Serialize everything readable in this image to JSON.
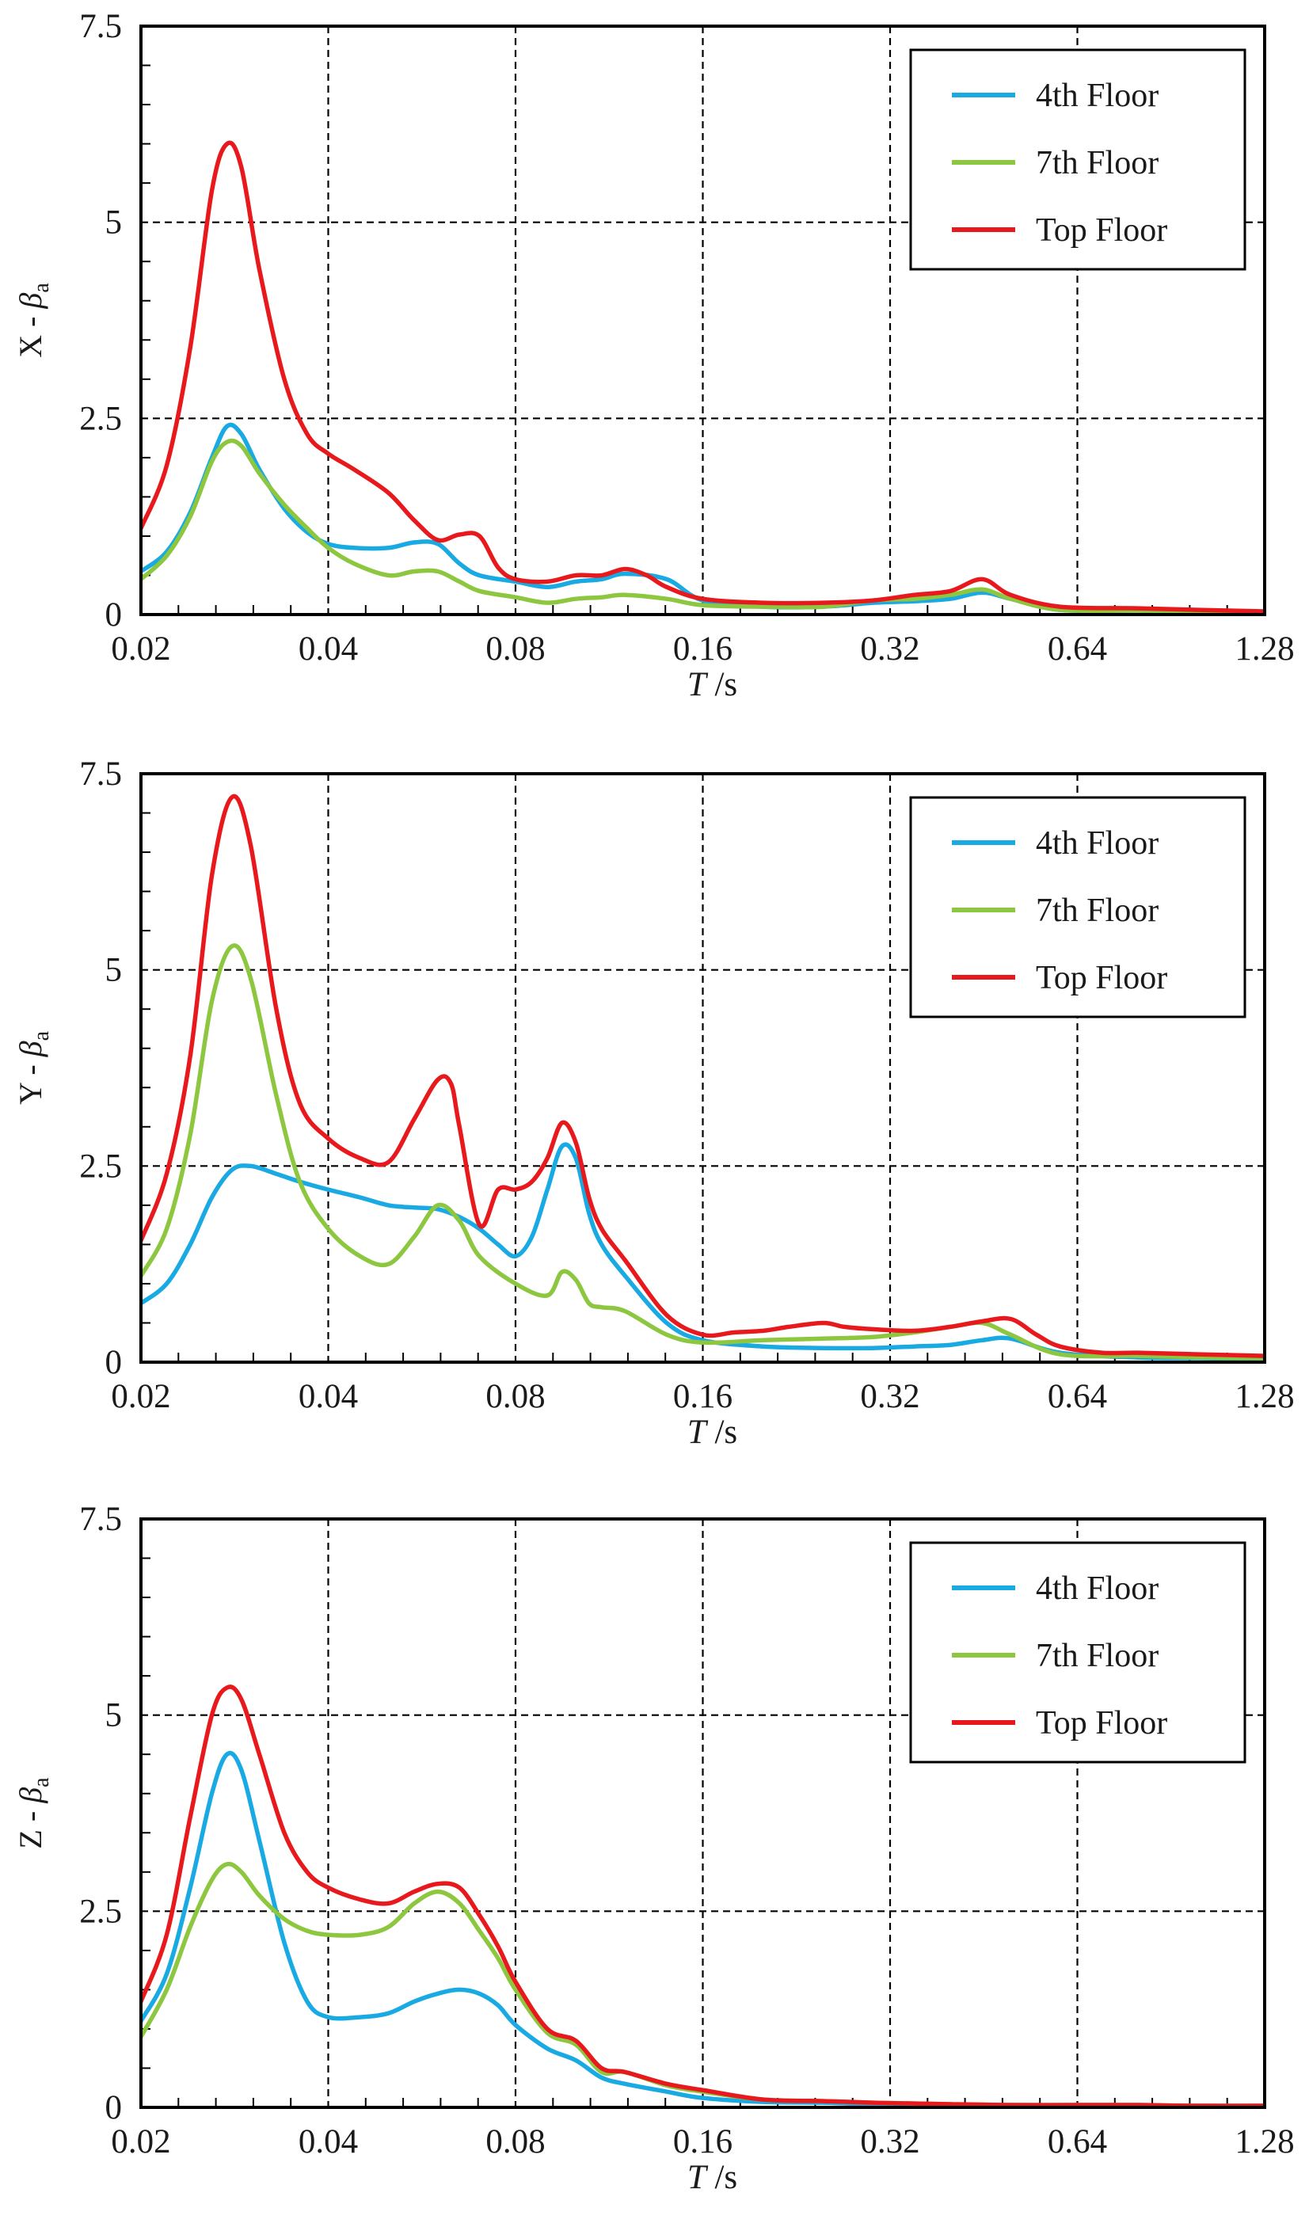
{
  "chart_data": [
    {
      "type": "line",
      "panel": "top",
      "title": "",
      "xlabel": "T /s",
      "ylabel": "X - βa",
      "ylabel_parts": {
        "lead": "X - ",
        "symbol": "β",
        "sub": "a"
      },
      "xscale": "log2",
      "xlim": [
        0.02,
        1.28
      ],
      "ylim": [
        0,
        7.5
      ],
      "xticks": [
        0.02,
        0.04,
        0.08,
        0.16,
        0.32,
        0.64,
        1.28
      ],
      "xtick_labels": [
        "0.02",
        "0.04",
        "0.08",
        "0.16",
        "0.32",
        "0.64",
        "1.28"
      ],
      "yticks": [
        0,
        2.5,
        5,
        7.5
      ],
      "ytick_labels": [
        "0",
        "2.5",
        "5",
        "7.5"
      ],
      "grid": "dashed, major ticks",
      "legend_position": "top-right",
      "series": [
        {
          "name": "4th Floor",
          "color": "#19a9e3",
          "x": [
            0.02,
            0.022,
            0.024,
            0.026,
            0.0275,
            0.029,
            0.031,
            0.034,
            0.037,
            0.04,
            0.044,
            0.05,
            0.055,
            0.06,
            0.065,
            0.07,
            0.08,
            0.09,
            0.1,
            0.11,
            0.12,
            0.14,
            0.16,
            0.2,
            0.25,
            0.3,
            0.35,
            0.4,
            0.45,
            0.5,
            0.6,
            0.8,
            1.0,
            1.28
          ],
          "y": [
            0.55,
            0.8,
            1.3,
            2.0,
            2.4,
            2.3,
            1.85,
            1.35,
            1.05,
            0.9,
            0.85,
            0.85,
            0.92,
            0.9,
            0.65,
            0.5,
            0.42,
            0.35,
            0.42,
            0.45,
            0.52,
            0.45,
            0.18,
            0.1,
            0.1,
            0.15,
            0.17,
            0.2,
            0.28,
            0.2,
            0.06,
            0.05,
            0.04,
            0.03
          ]
        },
        {
          "name": "7th Floor",
          "color": "#8dc63f",
          "x": [
            0.02,
            0.022,
            0.024,
            0.026,
            0.0275,
            0.029,
            0.031,
            0.034,
            0.037,
            0.04,
            0.044,
            0.05,
            0.055,
            0.06,
            0.065,
            0.07,
            0.08,
            0.09,
            0.1,
            0.11,
            0.12,
            0.14,
            0.16,
            0.2,
            0.25,
            0.3,
            0.35,
            0.4,
            0.45,
            0.5,
            0.6,
            0.8,
            1.0,
            1.28
          ],
          "y": [
            0.45,
            0.75,
            1.25,
            1.95,
            2.2,
            2.15,
            1.8,
            1.4,
            1.1,
            0.85,
            0.65,
            0.5,
            0.55,
            0.55,
            0.42,
            0.3,
            0.22,
            0.15,
            0.2,
            0.22,
            0.25,
            0.2,
            0.12,
            0.1,
            0.1,
            0.18,
            0.2,
            0.25,
            0.32,
            0.2,
            0.06,
            0.05,
            0.04,
            0.03
          ]
        },
        {
          "name": "Top Floor",
          "color": "#e8191c",
          "x": [
            0.02,
            0.022,
            0.024,
            0.026,
            0.0275,
            0.029,
            0.031,
            0.034,
            0.037,
            0.04,
            0.044,
            0.05,
            0.055,
            0.06,
            0.065,
            0.07,
            0.075,
            0.08,
            0.09,
            0.1,
            0.11,
            0.12,
            0.13,
            0.14,
            0.16,
            0.2,
            0.25,
            0.3,
            0.35,
            0.4,
            0.45,
            0.5,
            0.6,
            0.8,
            1.0,
            1.28
          ],
          "y": [
            1.1,
            1.9,
            3.4,
            5.4,
            6.0,
            5.7,
            4.4,
            3.0,
            2.3,
            2.05,
            1.85,
            1.55,
            1.2,
            0.95,
            1.02,
            1.0,
            0.6,
            0.45,
            0.42,
            0.5,
            0.5,
            0.58,
            0.5,
            0.35,
            0.2,
            0.15,
            0.15,
            0.18,
            0.25,
            0.3,
            0.45,
            0.25,
            0.1,
            0.08,
            0.06,
            0.04
          ]
        }
      ]
    },
    {
      "type": "line",
      "panel": "middle",
      "title": "",
      "xlabel": "T /s",
      "ylabel": "Y - βa",
      "ylabel_parts": {
        "lead": "Y - ",
        "symbol": "β",
        "sub": "a"
      },
      "xscale": "log2",
      "xlim": [
        0.02,
        1.28
      ],
      "ylim": [
        0,
        7.5
      ],
      "xticks": [
        0.02,
        0.04,
        0.08,
        0.16,
        0.32,
        0.64,
        1.28
      ],
      "xtick_labels": [
        "0.02",
        "0.04",
        "0.08",
        "0.16",
        "0.32",
        "0.64",
        "1.28"
      ],
      "yticks": [
        0,
        2.5,
        5,
        7.5
      ],
      "ytick_labels": [
        "0",
        "2.5",
        "5",
        "7.5"
      ],
      "grid": "dashed, major ticks",
      "legend_position": "top-right",
      "series": [
        {
          "name": "4th Floor",
          "color": "#19a9e3",
          "x": [
            0.02,
            0.022,
            0.024,
            0.026,
            0.028,
            0.03,
            0.033,
            0.036,
            0.04,
            0.045,
            0.05,
            0.055,
            0.06,
            0.065,
            0.07,
            0.075,
            0.08,
            0.085,
            0.09,
            0.095,
            0.1,
            0.105,
            0.11,
            0.12,
            0.14,
            0.16,
            0.2,
            0.25,
            0.3,
            0.35,
            0.4,
            0.45,
            0.5,
            0.6,
            0.8,
            1.0,
            1.28
          ],
          "y": [
            0.75,
            1.0,
            1.5,
            2.1,
            2.45,
            2.5,
            2.4,
            2.3,
            2.2,
            2.1,
            2.0,
            1.97,
            1.95,
            1.85,
            1.7,
            1.5,
            1.35,
            1.6,
            2.2,
            2.75,
            2.6,
            1.9,
            1.5,
            1.1,
            0.5,
            0.28,
            0.2,
            0.18,
            0.18,
            0.2,
            0.22,
            0.28,
            0.3,
            0.12,
            0.06,
            0.05,
            0.04
          ]
        },
        {
          "name": "7th Floor",
          "color": "#8dc63f",
          "x": [
            0.02,
            0.022,
            0.024,
            0.026,
            0.028,
            0.03,
            0.033,
            0.036,
            0.04,
            0.045,
            0.05,
            0.055,
            0.06,
            0.065,
            0.07,
            0.08,
            0.09,
            0.095,
            0.1,
            0.105,
            0.11,
            0.12,
            0.14,
            0.16,
            0.2,
            0.25,
            0.3,
            0.35,
            0.4,
            0.45,
            0.5,
            0.6,
            0.8,
            1.0,
            1.28
          ],
          "y": [
            1.1,
            1.7,
            2.9,
            4.6,
            5.3,
            4.9,
            3.4,
            2.3,
            1.7,
            1.35,
            1.25,
            1.6,
            2.0,
            1.8,
            1.35,
            1.0,
            0.85,
            1.15,
            1.05,
            0.75,
            0.7,
            0.65,
            0.35,
            0.25,
            0.28,
            0.3,
            0.32,
            0.38,
            0.45,
            0.5,
            0.35,
            0.1,
            0.08,
            0.06,
            0.05
          ]
        },
        {
          "name": "Top Floor",
          "color": "#e8191c",
          "x": [
            0.02,
            0.022,
            0.024,
            0.026,
            0.028,
            0.03,
            0.033,
            0.036,
            0.04,
            0.045,
            0.05,
            0.055,
            0.06,
            0.063,
            0.065,
            0.07,
            0.075,
            0.08,
            0.085,
            0.09,
            0.095,
            0.1,
            0.105,
            0.11,
            0.12,
            0.14,
            0.16,
            0.18,
            0.2,
            0.22,
            0.25,
            0.27,
            0.3,
            0.35,
            0.4,
            0.45,
            0.5,
            0.55,
            0.6,
            0.7,
            0.8,
            1.0,
            1.28
          ],
          "y": [
            1.55,
            2.4,
            3.9,
            6.2,
            7.2,
            6.6,
            4.5,
            3.3,
            2.85,
            2.6,
            2.55,
            3.1,
            3.6,
            3.55,
            3.0,
            1.75,
            2.2,
            2.2,
            2.3,
            2.6,
            3.05,
            2.8,
            2.1,
            1.7,
            1.3,
            0.6,
            0.35,
            0.38,
            0.4,
            0.45,
            0.5,
            0.45,
            0.42,
            0.4,
            0.45,
            0.52,
            0.55,
            0.35,
            0.2,
            0.12,
            0.12,
            0.1,
            0.08
          ]
        }
      ]
    },
    {
      "type": "line",
      "panel": "bottom",
      "title": "",
      "xlabel": "T /s",
      "ylabel": "Z - βa",
      "ylabel_parts": {
        "lead": "Z - ",
        "symbol": "β",
        "sub": "a"
      },
      "xscale": "log2",
      "xlim": [
        0.02,
        1.28
      ],
      "ylim": [
        0,
        7.5
      ],
      "xticks": [
        0.02,
        0.04,
        0.08,
        0.16,
        0.32,
        0.64,
        1.28
      ],
      "xtick_labels": [
        "0.02",
        "0.04",
        "0.08",
        "0.16",
        "0.32",
        "0.64",
        "1.28"
      ],
      "yticks": [
        0,
        2.5,
        5,
        7.5
      ],
      "ytick_labels": [
        "0",
        "2.5",
        "5",
        "7.5"
      ],
      "grid": "dashed, major ticks",
      "legend_position": "top-right",
      "series": [
        {
          "name": "4th Floor",
          "color": "#19a9e3",
          "x": [
            0.02,
            0.022,
            0.024,
            0.026,
            0.0275,
            0.029,
            0.031,
            0.034,
            0.037,
            0.04,
            0.045,
            0.05,
            0.055,
            0.06,
            0.065,
            0.07,
            0.075,
            0.08,
            0.09,
            0.1,
            0.11,
            0.12,
            0.14,
            0.16,
            0.2,
            0.25,
            0.3,
            0.4,
            0.5,
            0.64,
            0.8,
            1.0,
            1.28
          ],
          "y": [
            1.1,
            1.7,
            2.8,
            4.0,
            4.5,
            4.3,
            3.4,
            2.1,
            1.35,
            1.15,
            1.15,
            1.2,
            1.35,
            1.45,
            1.5,
            1.45,
            1.3,
            1.05,
            0.75,
            0.6,
            0.38,
            0.3,
            0.2,
            0.12,
            0.07,
            0.06,
            0.04,
            0.03,
            0.02,
            0.02,
            0.02,
            0.02,
            0.02
          ]
        },
        {
          "name": "7th Floor",
          "color": "#8dc63f",
          "x": [
            0.02,
            0.022,
            0.024,
            0.026,
            0.0275,
            0.029,
            0.031,
            0.034,
            0.037,
            0.04,
            0.045,
            0.05,
            0.055,
            0.06,
            0.065,
            0.07,
            0.075,
            0.08,
            0.09,
            0.1,
            0.11,
            0.12,
            0.14,
            0.16,
            0.2,
            0.25,
            0.3,
            0.4,
            0.5,
            0.64,
            0.8,
            1.0,
            1.28
          ],
          "y": [
            0.9,
            1.5,
            2.3,
            2.9,
            3.1,
            3.0,
            2.7,
            2.4,
            2.25,
            2.2,
            2.2,
            2.3,
            2.6,
            2.75,
            2.6,
            2.25,
            1.9,
            1.5,
            0.95,
            0.8,
            0.45,
            0.45,
            0.28,
            0.2,
            0.1,
            0.08,
            0.06,
            0.04,
            0.03,
            0.03,
            0.03,
            0.02,
            0.02
          ]
        },
        {
          "name": "Top Floor",
          "color": "#e8191c",
          "x": [
            0.02,
            0.022,
            0.024,
            0.026,
            0.0275,
            0.029,
            0.031,
            0.034,
            0.037,
            0.04,
            0.045,
            0.05,
            0.055,
            0.06,
            0.065,
            0.07,
            0.075,
            0.08,
            0.09,
            0.1,
            0.11,
            0.12,
            0.14,
            0.16,
            0.2,
            0.25,
            0.3,
            0.4,
            0.5,
            0.64,
            0.8,
            1.0,
            1.28
          ],
          "y": [
            1.35,
            2.2,
            3.7,
            5.0,
            5.35,
            5.2,
            4.5,
            3.5,
            3.0,
            2.8,
            2.65,
            2.6,
            2.75,
            2.85,
            2.8,
            2.45,
            2.05,
            1.6,
            1.0,
            0.85,
            0.5,
            0.45,
            0.3,
            0.22,
            0.1,
            0.08,
            0.06,
            0.04,
            0.03,
            0.03,
            0.03,
            0.02,
            0.02
          ]
        }
      ]
    }
  ]
}
